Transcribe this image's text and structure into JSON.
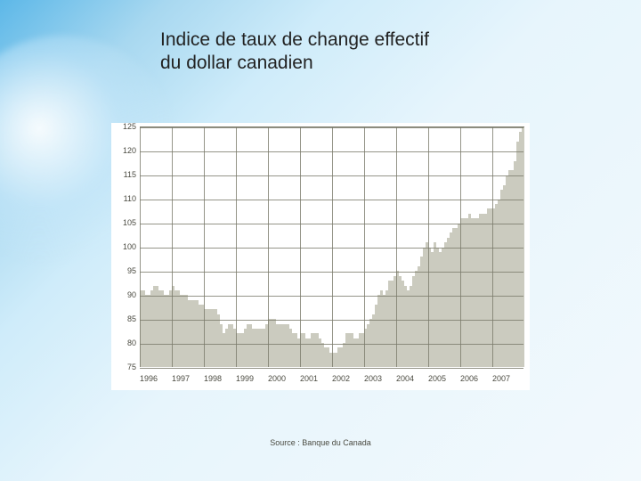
{
  "title_line1": "Indice de taux de change effectif",
  "title_line2": "du dollar canadien",
  "source": "Source : Banque du Canada",
  "chart": {
    "type": "area-bar",
    "background_color": "#ffffff",
    "grid_color": "#7b7b6c",
    "bar_color": "#CBCBBF",
    "label_fontsize": 9,
    "label_color": "#4a4a40",
    "ylim": [
      75,
      125
    ],
    "ytick_step": 5,
    "yticks": [
      75,
      80,
      85,
      90,
      95,
      100,
      105,
      110,
      115,
      120,
      125
    ],
    "years": [
      1996,
      1997,
      1998,
      1999,
      2000,
      2001,
      2002,
      2003,
      2004,
      2005,
      2006,
      2007
    ],
    "values": [
      91,
      91,
      90,
      90,
      91,
      92,
      92,
      91,
      91,
      90,
      90,
      91,
      92,
      91,
      91,
      90,
      90,
      90,
      89,
      89,
      89,
      89,
      88,
      88,
      87,
      87,
      87,
      87,
      87,
      86,
      84,
      82,
      83,
      84,
      84,
      83,
      82,
      82,
      82,
      83,
      84,
      84,
      83,
      83,
      83,
      83,
      83,
      84,
      85,
      85,
      85,
      84,
      84,
      84,
      84,
      84,
      83,
      82,
      82,
      81,
      82,
      82,
      81,
      81,
      82,
      82,
      82,
      81,
      80,
      79,
      79,
      78,
      78,
      78,
      79,
      79,
      80,
      82,
      82,
      82,
      81,
      81,
      82,
      82,
      83,
      84,
      85,
      86,
      88,
      90,
      91,
      90,
      91,
      93,
      93,
      94,
      95,
      94,
      93,
      92,
      91,
      92,
      94,
      95,
      96,
      98,
      100,
      101,
      100,
      99,
      101,
      100,
      99,
      100,
      101,
      102,
      103,
      104,
      104,
      105,
      106,
      106,
      106,
      107,
      106,
      106,
      106,
      107,
      107,
      107,
      108,
      108,
      108,
      109,
      110,
      112,
      113,
      115,
      116,
      116,
      118,
      122,
      124,
      125
    ]
  }
}
